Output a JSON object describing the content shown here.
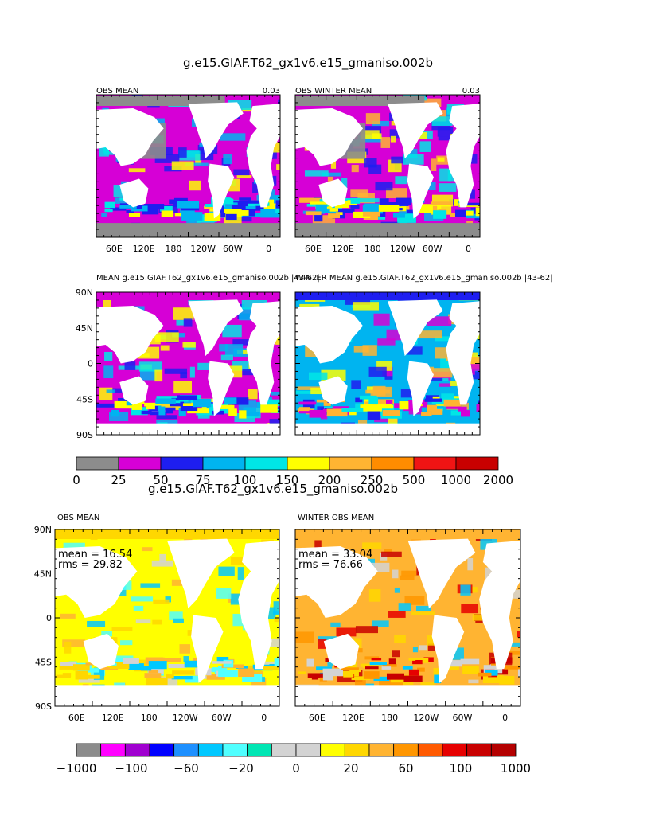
{
  "top_title": "g.e15.GIAF.T62_gx1v6.e15_gmaniso.002b",
  "bottom_title": "g.e15.GIAF.T62_gx1v6.e15_gmaniso.002b",
  "panels": {
    "obs_mean": {
      "title": "OBS MEAN",
      "value": "0.03"
    },
    "obs_winter_mean": {
      "title": "OBS WINTER MEAN",
      "value": "0.03"
    },
    "model_mean": {
      "title": "MEAN  g.e15.GIAF.T62_gx1v6.e15_gmaniso.002b |43-62|"
    },
    "model_winter_mean": {
      "title": "WINTER MEAN  g.e15.GIAF.T62_gx1v6.e15_gmaniso.002b |43-62|"
    },
    "diff_obs_mean": {
      "title": "OBS MEAN",
      "mean": "mean = 16.54",
      "rms": "rms = 29.82"
    },
    "diff_winter_obs_mean": {
      "title": "WINTER OBS MEAN",
      "mean": "mean = 33.04",
      "rms": "rms = 76.66"
    }
  },
  "lon_labels": [
    "60E",
    "120E",
    "180",
    "120W",
    "60W",
    "0"
  ],
  "lat_labels": [
    "90N",
    "45N",
    "0",
    "45S",
    "90S"
  ],
  "colorbar_top": {
    "colors": [
      "#8c8c8c",
      "#d600d6",
      "#1e1ef0",
      "#00b4f0",
      "#00e6e6",
      "#ffff00",
      "#ffb432",
      "#ff8c00",
      "#f01414",
      "#c80000"
    ],
    "labels": [
      "0",
      "25",
      "50",
      "75",
      "100",
      "150",
      "200",
      "250",
      "500",
      "1000",
      "2000"
    ]
  },
  "colorbar_bottom": {
    "colors": [
      "#8c8c8c",
      "#ff00ff",
      "#a000d0",
      "#0000ff",
      "#1e90ff",
      "#00c8ff",
      "#50ffff",
      "#00e6b4",
      "#d3d3d3",
      "#d3d3d3",
      "#ffff00",
      "#ffd700",
      "#ffb432",
      "#ff9600",
      "#ff5a00",
      "#e60000",
      "#c80000",
      "#b40000"
    ],
    "labels": [
      "−1000",
      "−100",
      "−60",
      "−20",
      "0",
      "20",
      "60",
      "100",
      "1000"
    ]
  }
}
